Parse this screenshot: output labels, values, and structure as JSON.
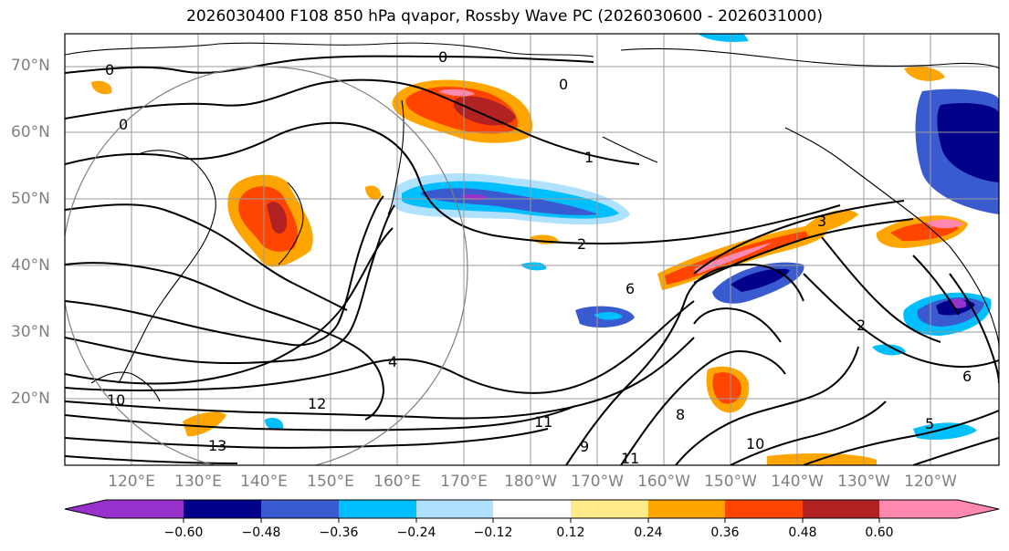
{
  "title": "2026030400 F108 850 hPa qvapor, Rossby Wave PC (2026030600 - 2026031000)",
  "lat_labels": [
    "70°N",
    "60°N",
    "50°N",
    "40°N",
    "30°N",
    "20°N"
  ],
  "lon_labels": [
    "120°E",
    "130°E",
    "140°E",
    "150°E",
    "160°E",
    "170°E",
    "180°W",
    "170°W",
    "160°W",
    "150°W",
    "140°W",
    "130°W",
    "120°W"
  ],
  "contour_labels": [
    "0",
    "0",
    "0",
    "0",
    "1",
    "2",
    "2",
    "3",
    "4",
    "5",
    "6",
    "6",
    "8",
    "9",
    "10",
    "10",
    "11",
    "11",
    "12",
    "13"
  ],
  "colorbar": {
    "tick_labels": [
      "−0.60",
      "−0.48",
      "−0.36",
      "−0.24",
      "−0.12",
      "0.12",
      "0.24",
      "0.36",
      "0.48",
      "0.60"
    ],
    "colors": [
      "#9932cc",
      "#00008b",
      "#3a5bd0",
      "#00bfff",
      "#b0e2ff",
      "#ffffff",
      "#ffeb8a",
      "#ffa500",
      "#ff4500",
      "#b22222",
      "#ff88b0"
    ]
  }
}
